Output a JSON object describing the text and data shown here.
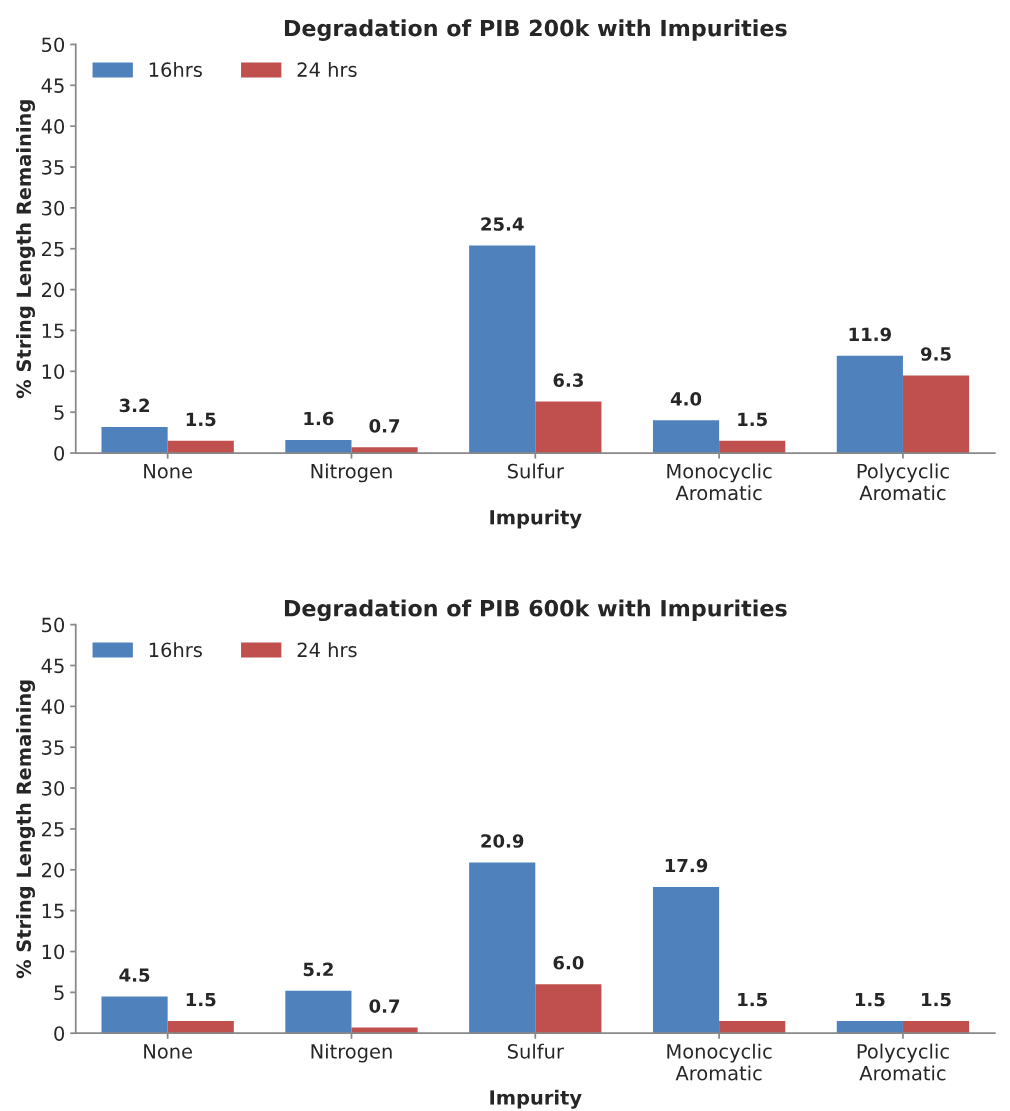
{
  "chart_data": [
    {
      "type": "bar",
      "title": "Degradation of PIB 200k with Impurities",
      "xlabel": "Impurity",
      "ylabel": "% String Length Remaining",
      "categories": [
        "None",
        "Nitrogen",
        "Sulfur",
        "Monocyclic\nAromatic",
        "Polycyclic\nAromatic"
      ],
      "series": [
        {
          "name": "16hrs",
          "color": "#4f81bd",
          "values": [
            3.2,
            1.6,
            25.4,
            4.0,
            11.9
          ],
          "value_labels": [
            "3.2",
            "1.6",
            "25.4",
            "4.0",
            "11.9"
          ]
        },
        {
          "name": "24 hrs",
          "color": "#c0504d",
          "values": [
            1.5,
            0.7,
            6.3,
            1.5,
            9.5
          ],
          "value_labels": [
            "1.5",
            "0.7",
            "6.3",
            "1.5",
            "9.5"
          ]
        }
      ],
      "ylim": [
        0,
        50
      ],
      "yticks": [
        0,
        5,
        10,
        15,
        20,
        25,
        30,
        35,
        40,
        45,
        50
      ],
      "grid": false,
      "legend": "top left"
    },
    {
      "type": "bar",
      "title": "Degradation of PIB 600k with Impurities",
      "xlabel": "Impurity",
      "ylabel": "% String Length Remaining",
      "categories": [
        "None",
        "Nitrogen",
        "Sulfur",
        "Monocyclic\nAromatic",
        "Polycyclic\nAromatic"
      ],
      "series": [
        {
          "name": "16hrs",
          "color": "#4f81bd",
          "values": [
            4.5,
            5.2,
            20.9,
            17.9,
            1.5
          ],
          "value_labels": [
            "4.5",
            "5.2",
            "20.9",
            "17.9",
            "1.5"
          ]
        },
        {
          "name": "24 hrs",
          "color": "#c0504d",
          "values": [
            1.5,
            0.7,
            6.0,
            1.5,
            1.5
          ],
          "value_labels": [
            "1.5",
            "0.7",
            "6.0",
            "1.5",
            "1.5"
          ]
        }
      ],
      "ylim": [
        0,
        50
      ],
      "yticks": [
        0,
        5,
        10,
        15,
        20,
        25,
        30,
        35,
        40,
        45,
        50
      ],
      "grid": false,
      "legend": "top left"
    }
  ]
}
